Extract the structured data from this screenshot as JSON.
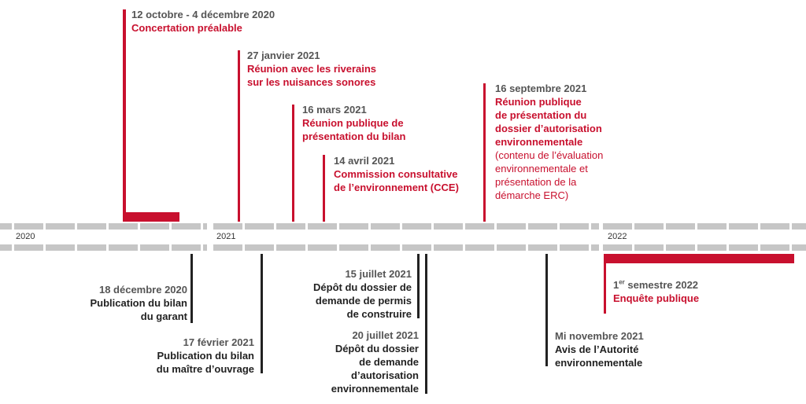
{
  "years": [
    "2020",
    "2021",
    "2022"
  ],
  "colors": {
    "red": "#c8102e",
    "dark": "#222222",
    "axis": "#c6c6c6"
  },
  "events_top": [
    {
      "date": "12 octobre - 4 décembre 2020",
      "title": [
        "Concertation préalable"
      ]
    },
    {
      "date": "27 janvier 2021",
      "title": [
        "Réunion avec les riverains",
        "sur les nuisances sonores"
      ]
    },
    {
      "date": "16 mars 2021",
      "title": [
        "Réunion publique de",
        "présentation du bilan"
      ]
    },
    {
      "date": "14 avril 2021",
      "title": [
        "Commission consultative",
        "de l’environnement (CCE)"
      ]
    },
    {
      "date": "16 septembre 2021",
      "title": [
        "Réunion publique",
        "de présentation du",
        "dossier d’autorisation",
        "environnementale"
      ],
      "note": [
        "(contenu de l’évaluation",
        "environnementale et",
        "présentation de la",
        "démarche ERC)"
      ]
    }
  ],
  "events_bottom": [
    {
      "date": "18 décembre 2020",
      "title": [
        "Publication du bilan",
        "du garant"
      ]
    },
    {
      "date": "17 février 2021",
      "title": [
        "Publication du bilan",
        "du maître d’ouvrage"
      ]
    },
    {
      "date": "15 juillet 2021",
      "title": [
        "Dépôt du dossier de",
        "demande de permis",
        "de construire"
      ]
    },
    {
      "date": "20 juillet 2021",
      "title": [
        "Dépôt du dossier",
        "de demande",
        "d’autorisation",
        "environnementale"
      ]
    },
    {
      "date": "Mi novembre 2021",
      "title": [
        "Avis de l’Autorité",
        "environnementale"
      ]
    },
    {
      "date_sup": "er",
      "date_rest": " semestre 2022",
      "date_pre": "1",
      "title": [
        "Enquête publique"
      ]
    }
  ]
}
